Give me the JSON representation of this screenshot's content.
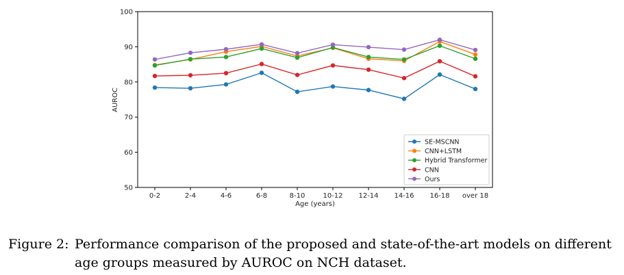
{
  "chart_data": {
    "type": "line",
    "xlabel": "Age (years)",
    "ylabel": "AUROC",
    "ylim": [
      50,
      100
    ],
    "yticks": [
      50,
      60,
      70,
      80,
      90,
      100
    ],
    "grid": false,
    "legend_position": "lower-right",
    "categories": [
      "0-2",
      "2-4",
      "4-6",
      "6-8",
      "8-10",
      "10-12",
      "12-14",
      "14-16",
      "16-18",
      "over 18"
    ],
    "series": [
      {
        "name": "SE-MSCNN",
        "color": "#1f77b4",
        "values": [
          78.4,
          78.2,
          79.3,
          82.6,
          77.2,
          78.7,
          77.7,
          75.2,
          82.1,
          78.0
        ]
      },
      {
        "name": "CNN+LSTM",
        "color": "#ff7f0e",
        "values": [
          84.8,
          86.4,
          88.6,
          90.1,
          87.4,
          89.7,
          86.6,
          86.0,
          91.5,
          87.8
        ]
      },
      {
        "name": "Hybrid Transformer",
        "color": "#2ca02c",
        "values": [
          84.7,
          86.5,
          87.1,
          89.5,
          86.9,
          89.8,
          87.1,
          86.4,
          90.3,
          86.6
        ]
      },
      {
        "name": "CNN",
        "color": "#d62728",
        "values": [
          81.7,
          81.9,
          82.5,
          85.1,
          82.0,
          84.7,
          83.5,
          81.1,
          85.9,
          81.6
        ]
      },
      {
        "name": "Ours",
        "color": "#9467bd",
        "values": [
          86.4,
          88.3,
          89.3,
          90.7,
          88.2,
          90.6,
          89.9,
          89.2,
          92.0,
          89.1
        ]
      }
    ]
  },
  "caption": {
    "label": "Figure 2:",
    "text": "Performance comparison of the proposed and state-of-the-art models on different age groups measured by AUROC on NCH dataset."
  }
}
